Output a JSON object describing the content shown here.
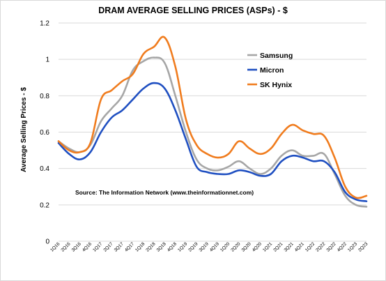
{
  "chart_data": {
    "type": "line",
    "title": "DRAM AVERAGE SELLING PRICES (ASPs) - $",
    "xlabel": "",
    "ylabel": "Average Selling Prices - $",
    "ylim": [
      0,
      1.2
    ],
    "yticks": [
      "0",
      "0.2",
      "0.4",
      "0.6",
      "0.8",
      "1",
      "1.2"
    ],
    "grid": "horizontal",
    "legend_position": "top-right",
    "annotation": "Source: The Information Network (www.theinformationnet.com)",
    "categories": [
      "1Q16",
      "2Q16",
      "3Q16",
      "4Q16",
      "1Q17",
      "2Q17",
      "3Q17",
      "4Q17",
      "1Q18",
      "2Q18",
      "3Q18",
      "4Q18",
      "1Q19",
      "2Q19",
      "3Q19",
      "4Q19",
      "1Q20",
      "2Q20",
      "3Q20",
      "4Q20",
      "1Q21",
      "2Q21",
      "3Q21",
      "4Q21",
      "1Q22",
      "2Q22",
      "3Q22",
      "4Q22",
      "1Q23",
      "2Q23"
    ],
    "series": [
      {
        "name": "Samsung",
        "color": "#a6a6a6",
        "values": [
          0.55,
          0.51,
          0.49,
          0.53,
          0.66,
          0.73,
          0.8,
          0.94,
          0.99,
          1.01,
          0.98,
          0.8,
          0.6,
          0.45,
          0.4,
          0.39,
          0.41,
          0.44,
          0.4,
          0.37,
          0.4,
          0.47,
          0.5,
          0.47,
          0.47,
          0.48,
          0.37,
          0.25,
          0.2,
          0.19
        ]
      },
      {
        "name": "Micron",
        "color": "#1f4fc1",
        "values": [
          0.54,
          0.48,
          0.45,
          0.49,
          0.6,
          0.68,
          0.72,
          0.78,
          0.84,
          0.87,
          0.84,
          0.72,
          0.56,
          0.41,
          0.38,
          0.37,
          0.37,
          0.39,
          0.38,
          0.36,
          0.37,
          0.44,
          0.47,
          0.46,
          0.44,
          0.44,
          0.38,
          0.27,
          0.23,
          0.22
        ]
      },
      {
        "name": "SK Hynix",
        "color": "#f07c1e",
        "values": [
          0.55,
          0.5,
          0.49,
          0.54,
          0.78,
          0.83,
          0.88,
          0.92,
          1.03,
          1.07,
          1.12,
          0.96,
          0.67,
          0.53,
          0.48,
          0.46,
          0.48,
          0.55,
          0.51,
          0.48,
          0.51,
          0.59,
          0.64,
          0.61,
          0.59,
          0.58,
          0.46,
          0.3,
          0.24,
          0.25
        ]
      }
    ]
  }
}
